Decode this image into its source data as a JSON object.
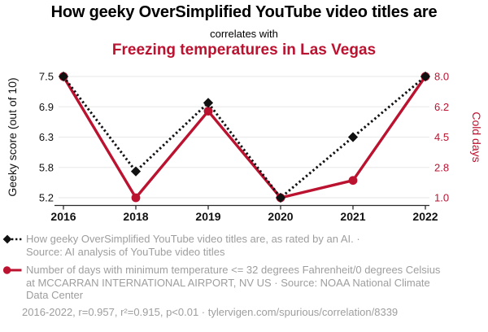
{
  "chart_data": {
    "type": "line",
    "title": "How geeky OverSimplified YouTube video titles are",
    "connector": "correlates with",
    "subtitle": "Freezing temperatures in Las Vegas",
    "categories": [
      "2016",
      "2018",
      "2019",
      "2020",
      "2021",
      "2022"
    ],
    "series": [
      {
        "name": "Geeky score",
        "key": "geeky-score",
        "axis": "left",
        "color": "#111111",
        "line_style": "dashed",
        "marker": "diamond",
        "values": [
          7.5,
          5.7,
          7.0,
          5.2,
          6.35,
          7.5
        ],
        "legend": "How geeky OverSimplified YouTube video titles are, as rated by an AI. · Source: AI analysis of YouTube video titles"
      },
      {
        "name": "Cold days",
        "key": "cold-days",
        "axis": "right",
        "color": "#bb1230",
        "line_style": "solid",
        "marker": "circle",
        "values": [
          8,
          1,
          6,
          1,
          2,
          8
        ],
        "legend": "Number of days with minimum temperature <= 32 degrees Fahrenheit/0 degrees Celsius at MCCARRAN INTERNATIONAL AIRPORT, NV US · Source: NOAA National Climate Data Center"
      }
    ],
    "axes": {
      "left": {
        "label": "Geeky score (out of 10)",
        "ticks": [
          "7.5",
          "6.9",
          "6.3",
          "5.8",
          "5.2"
        ],
        "min": 5.2,
        "max": 7.5,
        "color": "#111111"
      },
      "right": {
        "label": "Cold days",
        "ticks": [
          "8.0",
          "6.2",
          "4.5",
          "2.8",
          "1.0"
        ],
        "min": 1.0,
        "max": 8.0,
        "color": "#bb1230"
      }
    },
    "grid": true,
    "legend_position": "bottom",
    "footnote": "2016-2022, r=0.957, r²=0.915, p<0.01 · tylervigen.com/spurious/correlation/8339"
  },
  "colors": {
    "accent_red": "#bb1230",
    "series_black": "#111111",
    "legend_gray": "#9e9e9e",
    "gridline": "#ececec",
    "axis_line": "#2a2a2a",
    "background": "#ffffff"
  }
}
